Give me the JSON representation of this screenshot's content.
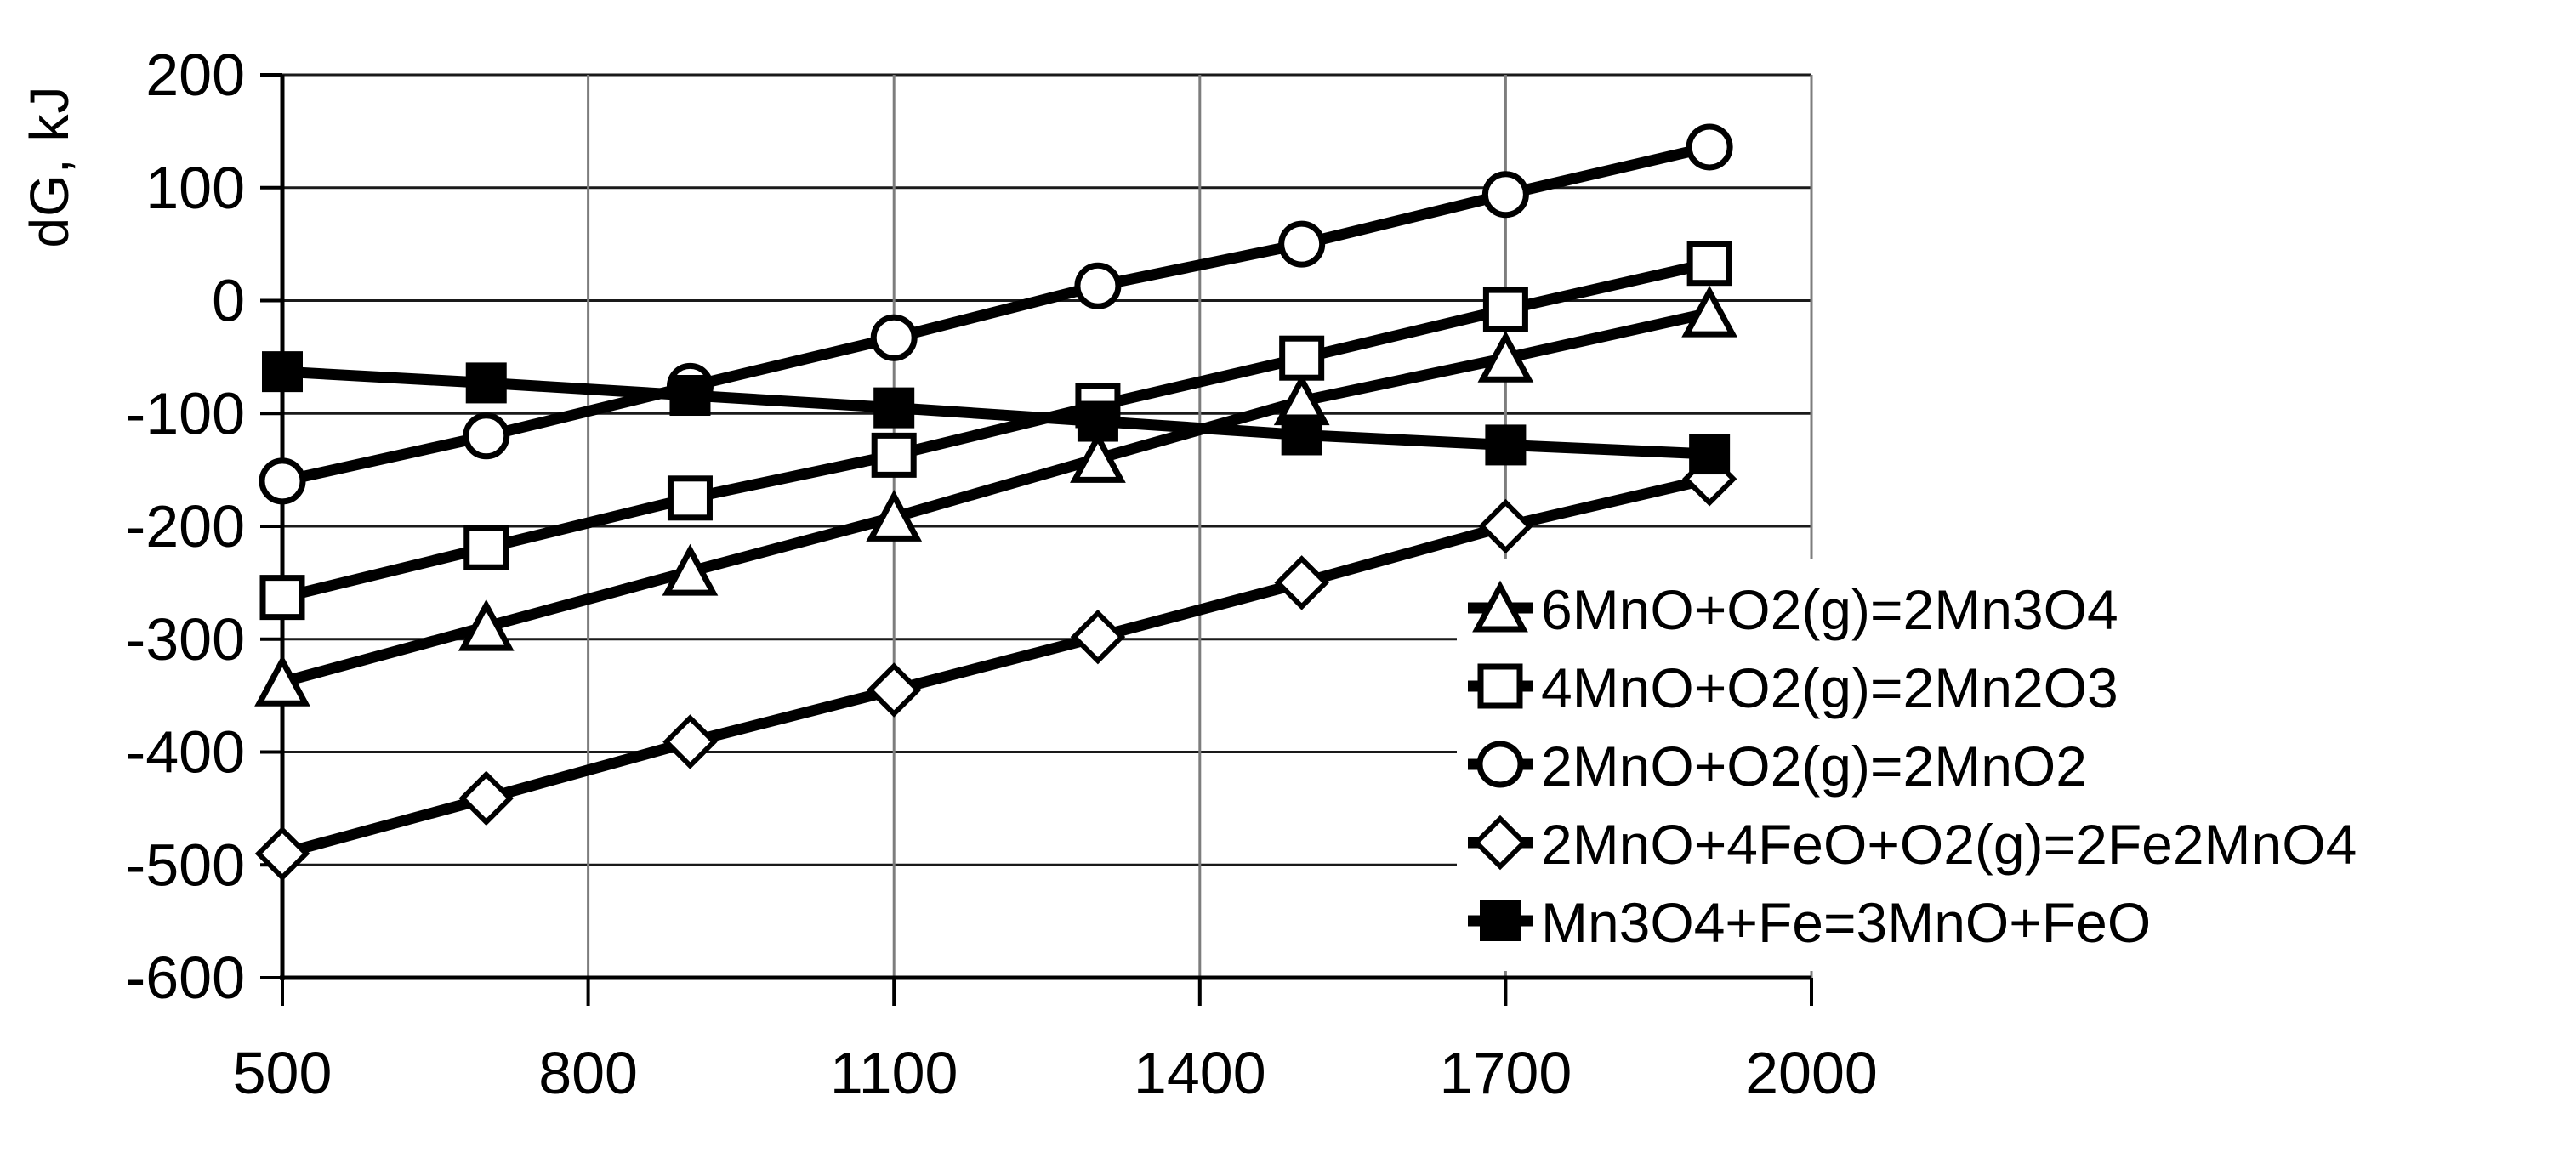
{
  "figure": {
    "background_color": "#ffffff",
    "line_color": "#000000",
    "h_gridline_color": "#1a1a1a",
    "v_gridline_color": "#7d7d7d",
    "axis_color": "#000000"
  },
  "chart_data": {
    "type": "line",
    "title": "",
    "xlabel": "",
    "ylabel": "dG, kJ",
    "xlim": [
      500,
      2000
    ],
    "ylim": [
      -600,
      200
    ],
    "x_ticks": [
      500,
      800,
      1100,
      1400,
      1700,
      2000
    ],
    "y_ticks": [
      200,
      100,
      0,
      -100,
      -200,
      -300,
      -400,
      -500,
      -600
    ],
    "grid": true,
    "legend_position": "inside-bottom-right",
    "x": [
      500,
      700,
      900,
      1100,
      1300,
      1500,
      1700,
      1900
    ],
    "series": [
      {
        "name": "6MnO+O2(g)=2Mn3O4",
        "marker": "triangle",
        "marker_fill": "white",
        "values": [
          -338,
          -289,
          -240,
          -192,
          -140,
          -89,
          -51,
          -11
        ]
      },
      {
        "name": "4MnO+O2(g)=2Mn2O3",
        "marker": "square",
        "marker_fill": "white",
        "values": [
          -263,
          -219,
          -175,
          -137,
          -93,
          -51,
          -8,
          33
        ]
      },
      {
        "name": "2MnO+O2(g)=2MnO2",
        "marker": "circle",
        "marker_fill": "white",
        "values": [
          -160,
          -120,
          -76,
          -33,
          13,
          50,
          94,
          136
        ]
      },
      {
        "name": "2MnO+4FeO+O2(g)=2Fe2MnO4",
        "marker": "diamond",
        "marker_fill": "white",
        "values": [
          -490,
          -441,
          -391,
          -345,
          -298,
          -250,
          -200,
          -158
        ]
      },
      {
        "name": "Mn3O4+Fe=3MnO+FeO",
        "marker": "square",
        "marker_fill": "black",
        "values": [
          -63,
          -73,
          -84,
          -95,
          -107,
          -119,
          -128,
          -136
        ]
      }
    ]
  }
}
